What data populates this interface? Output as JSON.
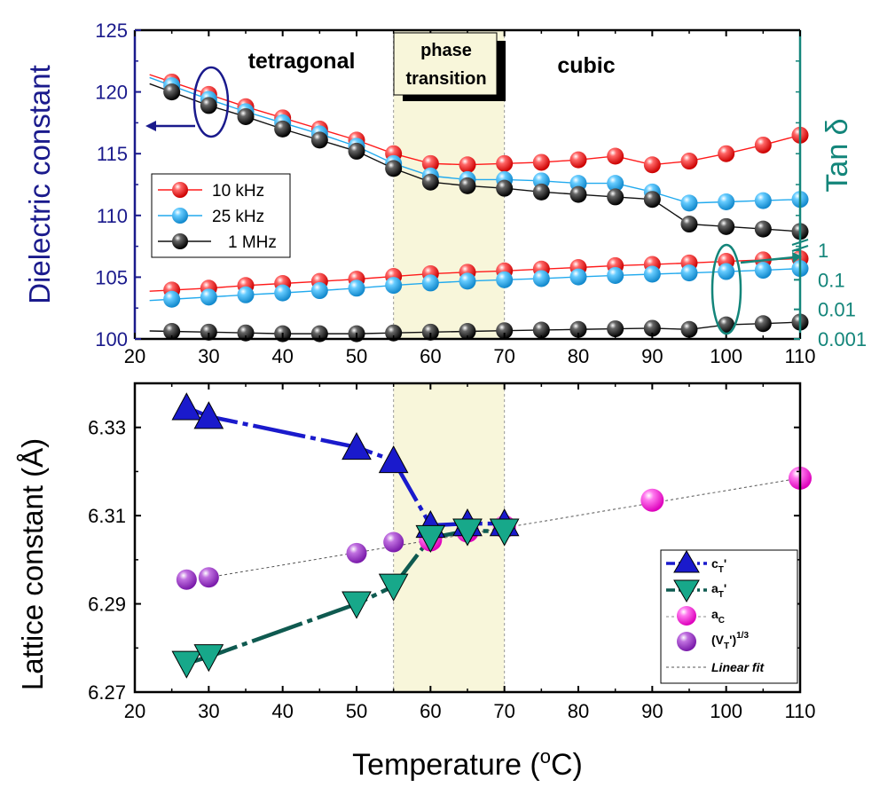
{
  "colors": {
    "left_axis": "#1a1a8c",
    "right_axis": "#13857a",
    "red": "#ff1a1a",
    "blue": "#22aaee",
    "black": "#111111",
    "tri_up": "#1a1acc",
    "tri_down": "#17a88a",
    "line_down": "#0f5a50",
    "pink": "#ff22dd",
    "purple": "#a033cc",
    "shade": "#f8f6da"
  },
  "chart_data": [
    {
      "type": "line",
      "xlabel": "",
      "ylabel": "Dielectric constant",
      "ylabel_right": "Tan δ",
      "xlim": [
        20,
        110
      ],
      "ylim": [
        100,
        125
      ],
      "x_ticks": [
        "20",
        "30",
        "40",
        "50",
        "60",
        "70",
        "80",
        "90",
        "100",
        "110"
      ],
      "y_ticks": [
        "100",
        "105",
        "110",
        "115",
        "120",
        "125"
      ],
      "y_right_ticks": [
        "1",
        "0.1",
        "0.01",
        "0.001"
      ],
      "annotations": {
        "tetragonal": "tetragonal",
        "phase_line1": "phase",
        "phase_line2": "transition",
        "cubic": "cubic"
      },
      "shaded_region": [
        55,
        70
      ],
      "legend_position": "left",
      "legend": [
        "10 kHz",
        "25 kHz",
        "1 MHz"
      ],
      "x": [
        25,
        30,
        35,
        40,
        45,
        50,
        55,
        60,
        65,
        70,
        75,
        80,
        85,
        90,
        95,
        100,
        105,
        110
      ],
      "series": [
        {
          "name": "10 kHz",
          "axis": "dielectric",
          "values": [
            120.8,
            119.8,
            118.8,
            117.9,
            117.0,
            116.1,
            115.0,
            114.2,
            114.1,
            114.2,
            114.3,
            114.5,
            114.8,
            114.1,
            114.4,
            115.0,
            115.7,
            116.5
          ]
        },
        {
          "name": "25 kHz",
          "axis": "dielectric",
          "values": [
            120.5,
            119.4,
            118.4,
            117.5,
            116.6,
            115.6,
            114.2,
            113.2,
            112.9,
            112.9,
            112.8,
            112.6,
            112.6,
            111.9,
            111.0,
            111.1,
            111.2,
            111.3
          ]
        },
        {
          "name": "1 MHz",
          "axis": "dielectric",
          "values": [
            120.0,
            118.9,
            118.0,
            117.0,
            116.1,
            115.2,
            113.8,
            112.7,
            112.4,
            112.2,
            111.9,
            111.7,
            111.5,
            111.3,
            109.3,
            109.1,
            108.9,
            108.7
          ]
        },
        {
          "name": "10 kHz",
          "axis": "tan_delta",
          "values": [
            0.045,
            0.052,
            0.064,
            0.075,
            0.088,
            0.105,
            0.13,
            0.16,
            0.18,
            0.2,
            0.23,
            0.26,
            0.3,
            0.33,
            0.37,
            0.42,
            0.47,
            0.52
          ]
        },
        {
          "name": "25 kHz",
          "axis": "tan_delta",
          "values": [
            0.022,
            0.026,
            0.031,
            0.036,
            0.043,
            0.052,
            0.065,
            0.078,
            0.09,
            0.1,
            0.11,
            0.125,
            0.14,
            0.155,
            0.17,
            0.19,
            0.21,
            0.24
          ]
        },
        {
          "name": "1 MHz",
          "axis": "tan_delta",
          "values": [
            0.0018,
            0.0017,
            0.0016,
            0.0015,
            0.0015,
            0.0015,
            0.0016,
            0.0017,
            0.0018,
            0.0019,
            0.002,
            0.0021,
            0.0022,
            0.0023,
            0.0021,
            0.003,
            0.0033,
            0.0037
          ]
        }
      ]
    },
    {
      "type": "scatter",
      "xlabel": "Temperature (°C)",
      "xlabel_main": "Temperature (",
      "xlabel_sup": "o",
      "xlabel_tail": "C)",
      "ylabel": "Lattice constant (Å)",
      "xlim": [
        20,
        110
      ],
      "ylim": [
        6.27,
        6.34
      ],
      "x_ticks": [
        "20",
        "30",
        "40",
        "50",
        "60",
        "70",
        "80",
        "90",
        "100",
        "110"
      ],
      "y_ticks": [
        "6.27",
        "6.29",
        "6.31",
        "6.33"
      ],
      "shaded_region": [
        55,
        70
      ],
      "legend_position": "bottom-right",
      "legend": [
        {
          "base": "c",
          "sub": "T",
          "tail": "'",
          "sup": ""
        },
        {
          "base": "a",
          "sub": "T",
          "tail": "'",
          "sup": ""
        },
        {
          "base": "a",
          "sub": "C",
          "tail": "",
          "sup": ""
        },
        {
          "base": "(V",
          "sub": "T",
          "tail": "')",
          "sup": "1/3"
        },
        {
          "base": "Linear fit",
          "sub": "",
          "tail": "",
          "sup": ""
        }
      ],
      "series": [
        {
          "name": "cT'",
          "marker": "triangle-up",
          "x": [
            27,
            30,
            50,
            55,
            60,
            65,
            70
          ],
          "values": [
            6.3345,
            6.3325,
            6.3255,
            6.3225,
            6.3078,
            6.3082,
            6.3082
          ]
        },
        {
          "name": "aT'",
          "marker": "triangle-down",
          "x": [
            27,
            30,
            50,
            55,
            60,
            65,
            70
          ],
          "values": [
            6.2765,
            6.278,
            6.29,
            6.294,
            6.305,
            6.3065,
            6.3065
          ]
        },
        {
          "name": "aC",
          "marker": "circle",
          "x": [
            60,
            65,
            70,
            90,
            110
          ],
          "values": [
            6.3045,
            6.3065,
            6.3075,
            6.3135,
            6.3185
          ]
        },
        {
          "name": "(VT')1/3",
          "marker": "circle",
          "x": [
            27,
            30,
            50,
            55,
            60,
            65,
            70
          ],
          "values": [
            6.2955,
            6.296,
            6.3015,
            6.304,
            6.306,
            6.3075,
            6.3078
          ]
        },
        {
          "name": "Linear fit",
          "marker": "none",
          "x": [
            30,
            110
          ],
          "values": [
            6.296,
            6.3185
          ]
        }
      ]
    }
  ]
}
